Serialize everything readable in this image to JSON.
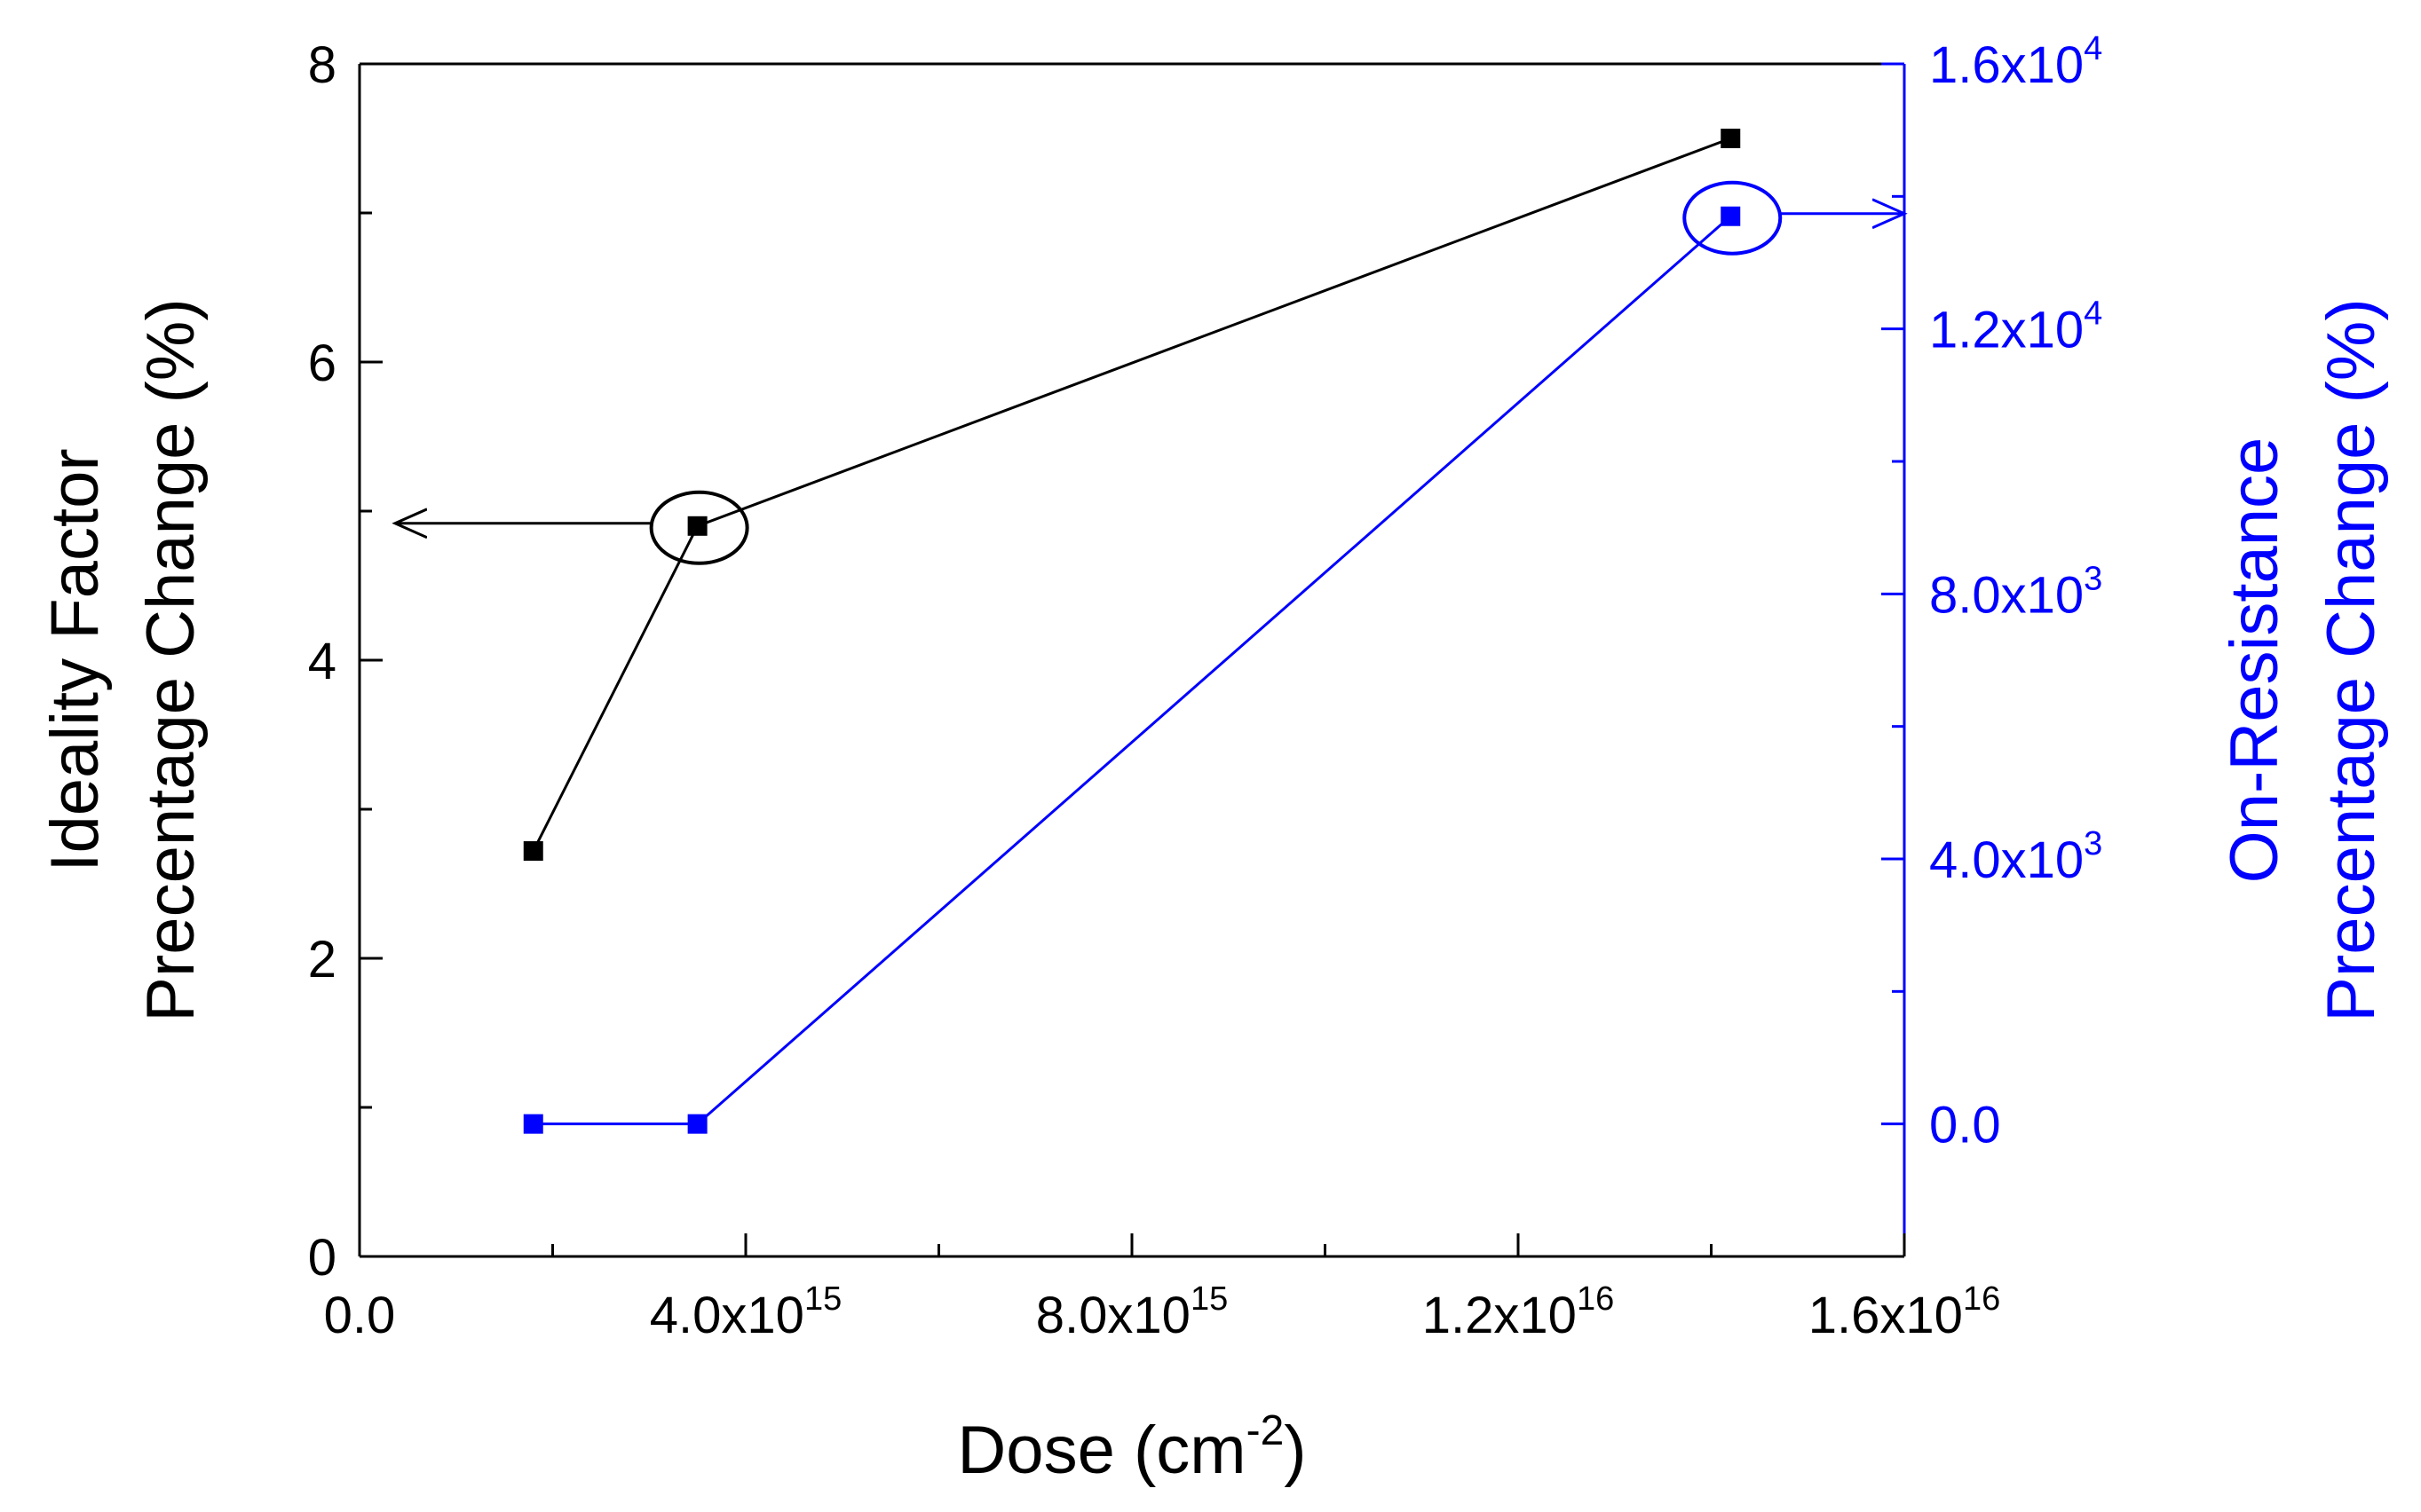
{
  "chart_data": {
    "type": "line",
    "xlabel": "Dose (cm",
    "xlabel_sup": "-2",
    "xlabel_end": ")",
    "ylabel_left": [
      "Ideality Factor",
      "Precentage Change (%)"
    ],
    "ylabel_right": [
      "On-Resistance",
      "Precentage Change (%)"
    ],
    "xlim": [
      0,
      1.6e+16
    ],
    "ylim_left": [
      0,
      8
    ],
    "ylim_right": [
      -2000,
      16000
    ],
    "x_ticks": [
      {
        "value": 0,
        "mant": "0.0",
        "exp": ""
      },
      {
        "value": 4000000000000000.0,
        "mant": "4.0x10",
        "exp": "15"
      },
      {
        "value": 8000000000000000.0,
        "mant": "8.0x10",
        "exp": "15"
      },
      {
        "value": 1.2e+16,
        "mant": "1.2x10",
        "exp": "16"
      },
      {
        "value": 1.6e+16,
        "mant": "1.6x10",
        "exp": "16"
      }
    ],
    "y_left_ticks": [
      {
        "value": 0,
        "label": "0"
      },
      {
        "value": 2,
        "label": "2"
      },
      {
        "value": 4,
        "label": "4"
      },
      {
        "value": 6,
        "label": "6"
      },
      {
        "value": 8,
        "label": "8"
      }
    ],
    "y_right_ticks": [
      {
        "value": 0,
        "mant": "0.0",
        "exp": ""
      },
      {
        "value": 4000,
        "mant": "4.0x10",
        "exp": "3"
      },
      {
        "value": 8000,
        "mant": "8.0x10",
        "exp": "3"
      },
      {
        "value": 12000,
        "mant": "1.2x10",
        "exp": "4"
      },
      {
        "value": 16000,
        "mant": "1.6x10",
        "exp": "4"
      }
    ],
    "series": [
      {
        "axis": "left",
        "color": "#000000",
        "x": [
          1800000000000000.0,
          3500000000000000.0,
          1.42e+16
        ],
        "y": [
          2.72,
          4.9,
          7.5
        ],
        "marker_circle_index": 1,
        "arrow_direction": "left"
      },
      {
        "axis": "right",
        "color": "#0000ff",
        "x": [
          1800000000000000.0,
          3500000000000000.0,
          1.42e+16
        ],
        "y": [
          0,
          0,
          13700
        ],
        "marker_circle_index": 2,
        "arrow_direction": "right"
      }
    ],
    "colors": {
      "left_axis": "#000000",
      "right_axis": "#0000ff"
    },
    "grid": false,
    "legend": "none"
  }
}
